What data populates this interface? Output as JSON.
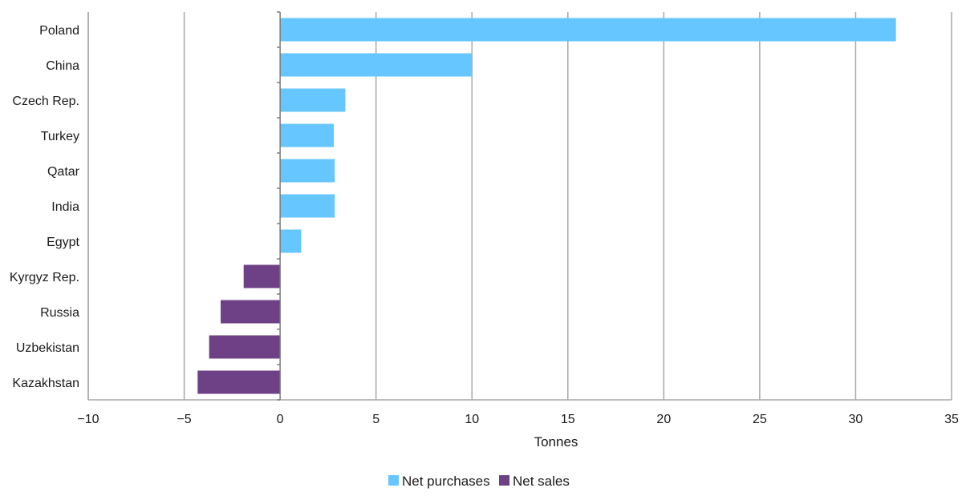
{
  "chart_data": {
    "type": "bar",
    "orientation": "horizontal",
    "title": "",
    "xlabel": "Tonnes",
    "ylabel": "",
    "xlim": [
      -10,
      35
    ],
    "xticks": [
      -10,
      -5,
      0,
      5,
      10,
      15,
      20,
      25,
      30,
      35
    ],
    "xtick_labels": [
      "−10",
      "−5",
      "0",
      "5",
      "10",
      "15",
      "20",
      "25",
      "30",
      "35"
    ],
    "grid": "vertical",
    "legend_position": "bottom-center",
    "categories": [
      "Poland",
      "China",
      "Czech Rep.",
      "Turkey",
      "Qatar",
      "India",
      "Egypt",
      "Kyrgyz Rep.",
      "Russia",
      "Uzbekistan",
      "Kazakhstan"
    ],
    "series": [
      {
        "name": "Net purchases",
        "color": "#66c6ff",
        "values": [
          32.1,
          10.0,
          3.4,
          2.8,
          2.85,
          2.85,
          1.1,
          null,
          null,
          null,
          null
        ]
      },
      {
        "name": "Net sales",
        "color": "#6e4187",
        "values": [
          null,
          null,
          null,
          null,
          null,
          null,
          null,
          -1.9,
          -3.1,
          -3.7,
          -4.3
        ]
      }
    ]
  }
}
